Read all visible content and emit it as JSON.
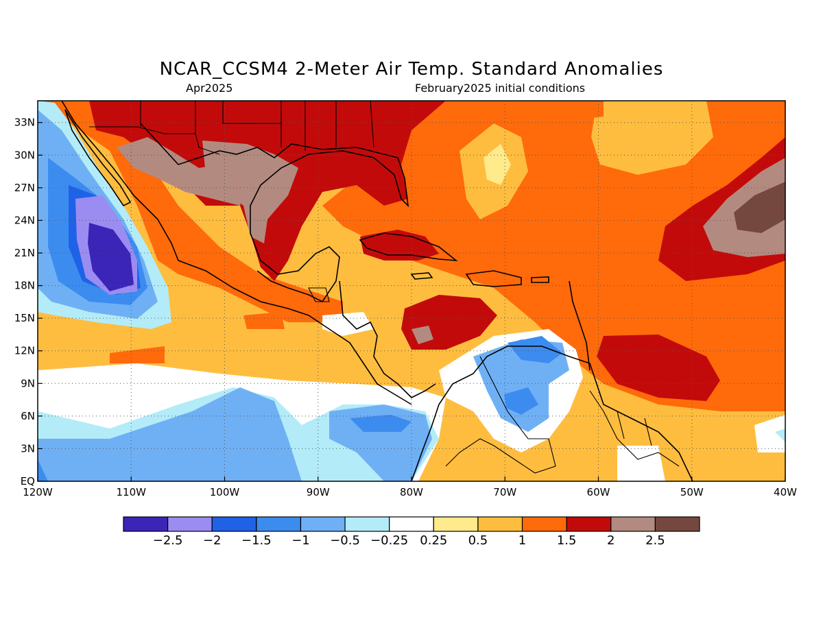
{
  "title": "NCAR_CCSM4 2-Meter Air Temp. Standard Anomalies",
  "subtitle_left": "Apr2025",
  "subtitle_right": "February2025 initial conditions",
  "map": {
    "lon_range": [
      -120,
      -40
    ],
    "lat_range": [
      0,
      35
    ],
    "x_ticks": [
      "120W",
      "110W",
      "100W",
      "90W",
      "80W",
      "70W",
      "60W",
      "50W",
      "40W"
    ],
    "y_ticks": [
      "EQ",
      "3N",
      "6N",
      "9N",
      "12N",
      "15N",
      "18N",
      "21N",
      "24N",
      "27N",
      "30N",
      "33N"
    ],
    "grid": true
  },
  "colorbar": {
    "colors": [
      "#3b24b8",
      "#9b8cf2",
      "#1f62e8",
      "#3c8cf0",
      "#6fb0f5",
      "#b3ecf8",
      "#ffffff",
      "#ffea8c",
      "#ffbd3f",
      "#ff6a0b",
      "#c30a0a",
      "#b38a80",
      "#75483f"
    ],
    "labels": [
      "-2.5",
      "-2",
      "-1.5",
      "-1",
      "-0.5",
      "-0.25",
      "0.25",
      "0.5",
      "1",
      "1.5",
      "2",
      "2.5"
    ]
  }
}
